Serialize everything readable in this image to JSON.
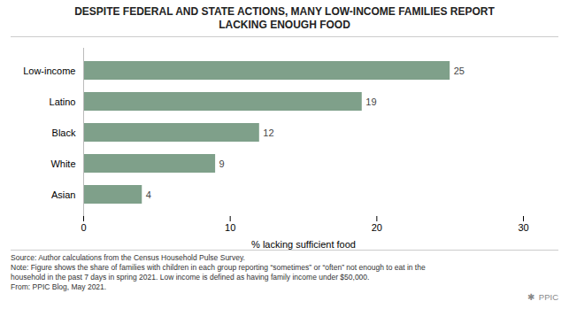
{
  "chart_data": {
    "type": "bar",
    "orientation": "horizontal",
    "title": "DESPITE FEDERAL AND STATE ACTIONS, MANY LOW-INCOME FAMILIES REPORT\nLACKING ENOUGH FOOD",
    "categories": [
      "Asian",
      "White",
      "Black",
      "Latino",
      "Low-income"
    ],
    "values": [
      4,
      9,
      12,
      19,
      25
    ],
    "color": "#7fa08a",
    "xlabel": "% lacking sufficient food",
    "xlim": [
      0,
      30
    ],
    "xticks": [
      0,
      10,
      20,
      30
    ],
    "grid": false,
    "data_labels": true,
    "annotations": [
      "Source: Author calculations from the Census Household Pulse Survey.",
      "Note: Figure shows the share of families with children in each group reporting “sometimes” or “often” not enough to eat in the\nhousehold in the past 7 days in spring 2021. Low income is defined as having family income under $50,000.",
      "From: PPIC Blog, May 2021.",
      "✱  PPIC"
    ]
  }
}
